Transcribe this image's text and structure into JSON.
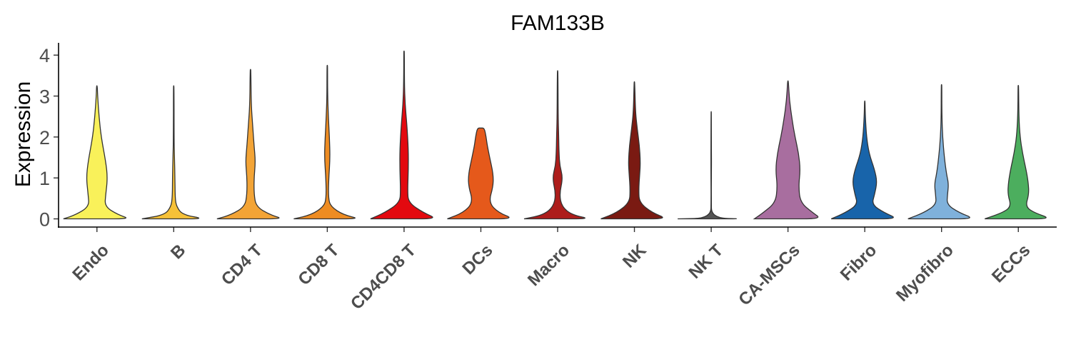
{
  "chart_data": {
    "type": "violin",
    "title": "FAM133B",
    "xlabel": "",
    "ylabel": "Expression",
    "ylim": [
      -0.2,
      4.3
    ],
    "yticks": [
      0,
      1,
      2,
      3,
      4
    ],
    "grid": false,
    "legend": "none",
    "categories": [
      {
        "name": "Endo",
        "color": "#F9F15A",
        "max": 3.25,
        "profile": [
          [
            0,
            0.95
          ],
          [
            0.1,
            0.6
          ],
          [
            0.3,
            0.22
          ],
          [
            0.6,
            0.25
          ],
          [
            1.0,
            0.3
          ],
          [
            1.4,
            0.25
          ],
          [
            2.0,
            0.12
          ],
          [
            2.5,
            0.06
          ],
          [
            3.0,
            0.02
          ],
          [
            3.25,
            0.01
          ]
        ]
      },
      {
        "name": "B",
        "color": "#F6C138",
        "max": 3.25,
        "profile": [
          [
            0,
            0.9
          ],
          [
            0.1,
            0.25
          ],
          [
            0.3,
            0.08
          ],
          [
            0.5,
            0.04
          ],
          [
            1.0,
            0.035
          ],
          [
            1.5,
            0.02
          ],
          [
            2.0,
            0.01
          ],
          [
            3.25,
            0.008
          ]
        ]
      },
      {
        "name": "CD4 T",
        "color": "#F3A436",
        "max": 3.65,
        "profile": [
          [
            0,
            0.95
          ],
          [
            0.1,
            0.55
          ],
          [
            0.3,
            0.16
          ],
          [
            0.6,
            0.1
          ],
          [
            1.0,
            0.1
          ],
          [
            1.4,
            0.14
          ],
          [
            1.8,
            0.1
          ],
          [
            2.3,
            0.06
          ],
          [
            2.8,
            0.02
          ],
          [
            3.65,
            0.01
          ]
        ]
      },
      {
        "name": "CD8 T",
        "color": "#EE8C22",
        "max": 3.75,
        "profile": [
          [
            0,
            0.95
          ],
          [
            0.1,
            0.45
          ],
          [
            0.3,
            0.1
          ],
          [
            0.5,
            0.03
          ],
          [
            1.0,
            0.04
          ],
          [
            1.5,
            0.08
          ],
          [
            2.0,
            0.06
          ],
          [
            2.5,
            0.03
          ],
          [
            3.0,
            0.01
          ],
          [
            3.75,
            0.008
          ]
        ]
      },
      {
        "name": "CD4CD8 T",
        "color": "#E3090F",
        "max": 4.1,
        "profile": [
          [
            0,
            0.95
          ],
          [
            0.15,
            0.55
          ],
          [
            0.4,
            0.12
          ],
          [
            0.7,
            0.1
          ],
          [
            1.2,
            0.12
          ],
          [
            1.7,
            0.12
          ],
          [
            2.3,
            0.08
          ],
          [
            2.8,
            0.03
          ],
          [
            3.3,
            0.01
          ],
          [
            4.1,
            0.008
          ]
        ]
      },
      {
        "name": "DCs",
        "color": "#E5591B",
        "max": 2.22,
        "profile": [
          [
            0,
            0.95
          ],
          [
            0.15,
            0.5
          ],
          [
            0.4,
            0.22
          ],
          [
            0.8,
            0.35
          ],
          [
            1.1,
            0.35
          ],
          [
            1.5,
            0.25
          ],
          [
            1.8,
            0.18
          ],
          [
            2.0,
            0.15
          ],
          [
            2.22,
            0.1
          ]
        ]
      },
      {
        "name": "Macro",
        "color": "#AD1D1B",
        "max": 3.62,
        "profile": [
          [
            0,
            0.95
          ],
          [
            0.1,
            0.4
          ],
          [
            0.3,
            0.12
          ],
          [
            0.6,
            0.05
          ],
          [
            1.0,
            0.15
          ],
          [
            1.3,
            0.06
          ],
          [
            1.6,
            0.04
          ],
          [
            2.0,
            0.03
          ],
          [
            2.5,
            0.015
          ],
          [
            3.62,
            0.008
          ]
        ]
      },
      {
        "name": "NK",
        "color": "#7A1A12",
        "max": 3.35,
        "profile": [
          [
            0,
            0.95
          ],
          [
            0.15,
            0.5
          ],
          [
            0.4,
            0.14
          ],
          [
            0.7,
            0.12
          ],
          [
            1.1,
            0.15
          ],
          [
            1.4,
            0.17
          ],
          [
            1.8,
            0.14
          ],
          [
            2.2,
            0.08
          ],
          [
            2.6,
            0.03
          ],
          [
            3.35,
            0.008
          ]
        ]
      },
      {
        "name": "NK T",
        "color": "#555555",
        "max": 2.62,
        "profile": [
          [
            0,
            0.95
          ],
          [
            0.02,
            0.01
          ],
          [
            0.5,
            0.004
          ],
          [
            1.0,
            0.006
          ],
          [
            1.4,
            0.008
          ],
          [
            1.8,
            0.006
          ],
          [
            2.62,
            0.004
          ]
        ]
      },
      {
        "name": "CA-MSCs",
        "color": "#A86E9F",
        "max": 3.37,
        "profile": [
          [
            0,
            0.95
          ],
          [
            0.15,
            0.7
          ],
          [
            0.4,
            0.35
          ],
          [
            0.8,
            0.3
          ],
          [
            1.2,
            0.35
          ],
          [
            1.6,
            0.3
          ],
          [
            2.0,
            0.2
          ],
          [
            2.4,
            0.12
          ],
          [
            2.9,
            0.04
          ],
          [
            3.37,
            0.01
          ]
        ]
      },
      {
        "name": "Fibro",
        "color": "#1864AA",
        "max": 2.88,
        "profile": [
          [
            0,
            0.95
          ],
          [
            0.15,
            0.55
          ],
          [
            0.35,
            0.2
          ],
          [
            0.6,
            0.28
          ],
          [
            0.9,
            0.35
          ],
          [
            1.2,
            0.28
          ],
          [
            1.6,
            0.12
          ],
          [
            2.0,
            0.05
          ],
          [
            2.5,
            0.015
          ],
          [
            2.88,
            0.008
          ]
        ]
      },
      {
        "name": "Myofibro",
        "color": "#7FB1DB",
        "max": 3.28,
        "profile": [
          [
            0,
            0.95
          ],
          [
            0.15,
            0.5
          ],
          [
            0.35,
            0.15
          ],
          [
            0.6,
            0.17
          ],
          [
            0.85,
            0.2
          ],
          [
            1.1,
            0.14
          ],
          [
            1.5,
            0.08
          ],
          [
            2.0,
            0.03
          ],
          [
            2.5,
            0.01
          ],
          [
            3.28,
            0.008
          ]
        ]
      },
      {
        "name": "ECCs",
        "color": "#4CAE5E",
        "max": 3.26,
        "profile": [
          [
            0,
            0.95
          ],
          [
            0.15,
            0.45
          ],
          [
            0.3,
            0.2
          ],
          [
            0.6,
            0.3
          ],
          [
            0.9,
            0.28
          ],
          [
            1.2,
            0.22
          ],
          [
            1.6,
            0.12
          ],
          [
            2.0,
            0.05
          ],
          [
            2.5,
            0.015
          ],
          [
            3.26,
            0.008
          ]
        ]
      }
    ]
  }
}
